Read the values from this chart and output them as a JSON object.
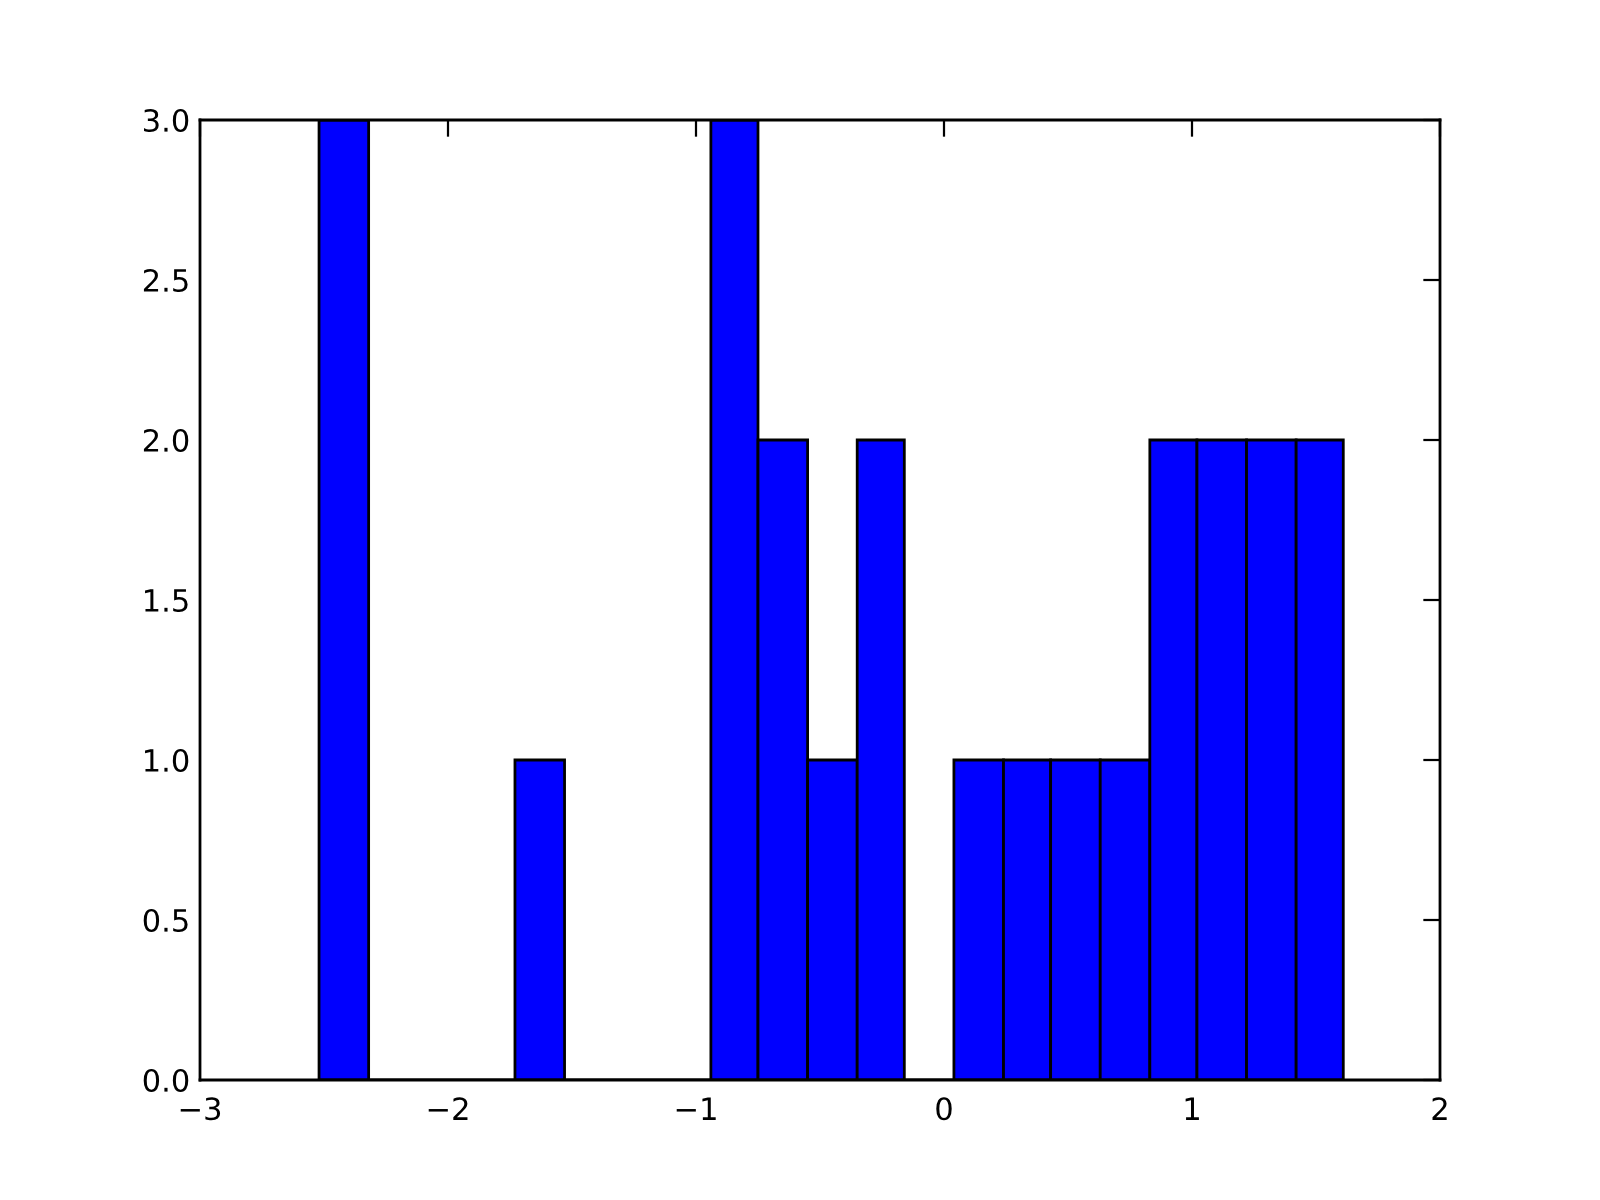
{
  "chart_data": {
    "type": "histogram",
    "bins": [
      -2.52,
      -2.32,
      -1.73,
      -1.53,
      -0.94,
      -0.75,
      -0.55,
      -0.35,
      -0.16,
      0.04,
      0.24,
      0.43,
      0.63,
      0.83,
      1.02,
      1.22,
      1.42,
      1.61
    ],
    "values": [
      3,
      0,
      1,
      0,
      3,
      2,
      1,
      2,
      0,
      1,
      1,
      1,
      1,
      2,
      2,
      2,
      2
    ],
    "color": "#0000ff",
    "xlim": [
      -3,
      2
    ],
    "xticks": [
      {
        "value": -3,
        "label": "−3"
      },
      {
        "value": -2,
        "label": "−2"
      },
      {
        "value": -1,
        "label": "−1"
      },
      {
        "value": 0,
        "label": "0"
      },
      {
        "value": 1,
        "label": "1"
      },
      {
        "value": 2,
        "label": "2"
      }
    ],
    "ylim": [
      0,
      3
    ],
    "yticks": [
      {
        "value": 0,
        "label": "0.0"
      },
      {
        "value": 0.5,
        "label": "0.5"
      },
      {
        "value": 1,
        "label": "1.0"
      },
      {
        "value": 1.5,
        "label": "1.5"
      },
      {
        "value": 2,
        "label": "2.0"
      },
      {
        "value": 2.5,
        "label": "2.5"
      },
      {
        "value": 3,
        "label": "3.0"
      }
    ],
    "grid": false
  }
}
